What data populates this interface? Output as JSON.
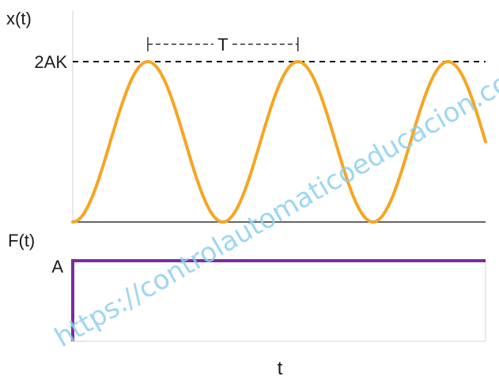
{
  "chart_data": [
    {
      "type": "line",
      "name": "response",
      "ylabel": "x(t)",
      "xlabel": "",
      "ylim": [
        0,
        1
      ],
      "x_range_periods": [
        0,
        2.75
      ],
      "series": [
        {
          "name": "x(t)",
          "formula": "AK*(1 - cos(2*pi*t/T))",
          "min": 0,
          "peak": 1,
          "periods_shown": 2.75,
          "color": "#f5a623"
        }
      ],
      "reference_line": {
        "label": "2AK",
        "y": 1,
        "style": "dashed"
      },
      "period_annotation": {
        "label": "T",
        "from_peak": 1,
        "to_peak": 2
      }
    },
    {
      "type": "line",
      "name": "input",
      "ylabel": "F(t)",
      "xlabel": "t",
      "ylim": [
        0,
        1
      ],
      "series": [
        {
          "name": "F(t)",
          "shape": "step",
          "step_at": 0,
          "level": 1,
          "level_label": "A",
          "color": "#7b2d9c"
        }
      ]
    }
  ],
  "watermark": "https://controlautomaticoeducacion.com/"
}
